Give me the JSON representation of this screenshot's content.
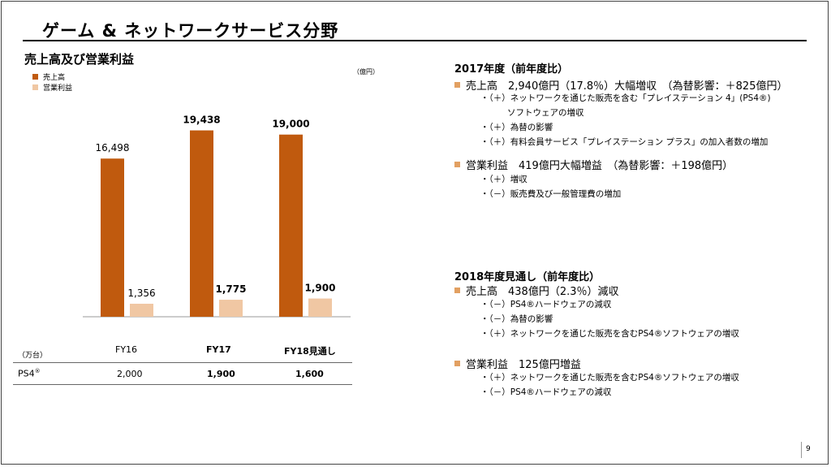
{
  "header": {
    "title": "ゲーム & ネットワークサービス分野"
  },
  "chart_section": {
    "subtitle": "売上高及び営業利益",
    "unit": "（億円）",
    "legend": [
      {
        "label": "売上高",
        "color": "#C05A0E"
      },
      {
        "label": "営業利益",
        "color": "#F0C7A3"
      }
    ]
  },
  "chart_data": {
    "type": "bar",
    "categories": [
      "FY16",
      "FY17",
      "FY18見通し"
    ],
    "series": [
      {
        "name": "売上高",
        "values": [
          16498,
          19438,
          19000
        ],
        "labels": [
          "16,498",
          "19,438",
          "19,000"
        ]
      },
      {
        "name": "営業利益",
        "values": [
          1356,
          1775,
          1900
        ],
        "labels": [
          "1,356",
          "1,775",
          "1,900"
        ]
      }
    ],
    "ylim": [
      0,
      20500
    ]
  },
  "table": {
    "unit": "（万台）",
    "headers": [
      "FY16",
      "FY17",
      "FY18見通し"
    ],
    "row_label": "PS4",
    "row_label_sup": "®",
    "values": [
      "2,000",
      "1,900",
      "1,600"
    ]
  },
  "right": {
    "s1_heading": "2017年度（前年度比）",
    "s1_b1": "売上高　2,940億円（17.8％）大幅増収　（為替影響：＋825億円）",
    "s1_b1_subs": [
      "・（＋）ネットワークを通じた販売を含む「プレイステーション 4」(PS4®)",
      "ソフトウェアの増収",
      "・（＋）為替の影響",
      "・（＋）有料会員サービス「プレイステーション プラス」の加入者数の増加"
    ],
    "s1_b2": "営業利益　419億円大幅増益　（為替影響：＋198億円）",
    "s1_b2_subs": [
      "・（＋）増収",
      "・（－）販売費及び一般管理費の増加"
    ],
    "s2_heading": "2018年度見通し（前年度比）",
    "s2_b1": "売上高　438億円（2.3％）減収",
    "s2_b1_subs": [
      "・（－）PS4®ハードウェアの減収",
      "・（－）為替の影響",
      "・（＋）ネットワークを通じた販売を含むPS4®ソフトウェアの増収"
    ],
    "s2_b2": "営業利益　125億円増益",
    "s2_b2_subs": [
      "・（＋）ネットワークを通じた販売を含むPS4®ソフトウェアの増収",
      "・（－）PS4®ハードウェアの減収"
    ]
  },
  "footer": {
    "page": "9"
  }
}
